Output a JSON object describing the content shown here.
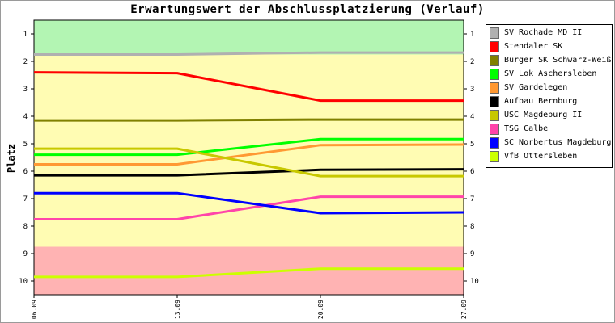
{
  "chart_data": {
    "type": "line",
    "title": "Erwartungswert der Abschlussplatzierung (Verlauf)",
    "ylabel": "Platz",
    "xlabel": "",
    "x": [
      "06.09",
      "13.09",
      "20.09",
      "27.09"
    ],
    "ylim": [
      0.5,
      10.5
    ],
    "y_inverted": true,
    "yticks": [
      1,
      2,
      3,
      4,
      5,
      6,
      7,
      8,
      9,
      10
    ],
    "legend_position": "right",
    "bands": [
      {
        "from": 0.5,
        "to": 1.75,
        "color": "#b3f5b3"
      },
      {
        "from": 1.75,
        "to": 8.75,
        "color": "#fffcb3"
      },
      {
        "from": 8.75,
        "to": 10.5,
        "color": "#ffb3b3"
      }
    ],
    "series": [
      {
        "name": "SV Rochade MD II",
        "color": "#b0b0b0",
        "values": [
          1.75,
          1.75,
          1.68,
          1.68
        ]
      },
      {
        "name": "Stendaler SK",
        "color": "#ff0000",
        "values": [
          2.4,
          2.43,
          3.43,
          3.43
        ]
      },
      {
        "name": "Burger SK Schwarz-Weiß",
        "color": "#808000",
        "values": [
          4.15,
          4.15,
          4.12,
          4.12
        ]
      },
      {
        "name": "SV Lok Aschersleben",
        "color": "#00ff00",
        "values": [
          5.4,
          5.4,
          4.83,
          4.83
        ]
      },
      {
        "name": "SV Gardelegen",
        "color": "#ff9933",
        "values": [
          5.75,
          5.75,
          5.05,
          5.03
        ]
      },
      {
        "name": "Aufbau Bernburg",
        "color": "#000000",
        "values": [
          6.15,
          6.15,
          5.95,
          5.93
        ]
      },
      {
        "name": "USC Magdeburg II",
        "color": "#c8c800",
        "values": [
          5.18,
          5.18,
          6.18,
          6.18
        ]
      },
      {
        "name": "TSG Calbe",
        "color": "#ff44aa",
        "values": [
          7.75,
          7.75,
          6.93,
          6.93
        ]
      },
      {
        "name": "SC Norbertus Magdeburg",
        "color": "#0000ff",
        "values": [
          6.8,
          6.8,
          7.53,
          7.5
        ]
      },
      {
        "name": "VfB Ottersleben",
        "color": "#ccff00",
        "values": [
          9.85,
          9.85,
          9.55,
          9.55
        ]
      }
    ]
  }
}
